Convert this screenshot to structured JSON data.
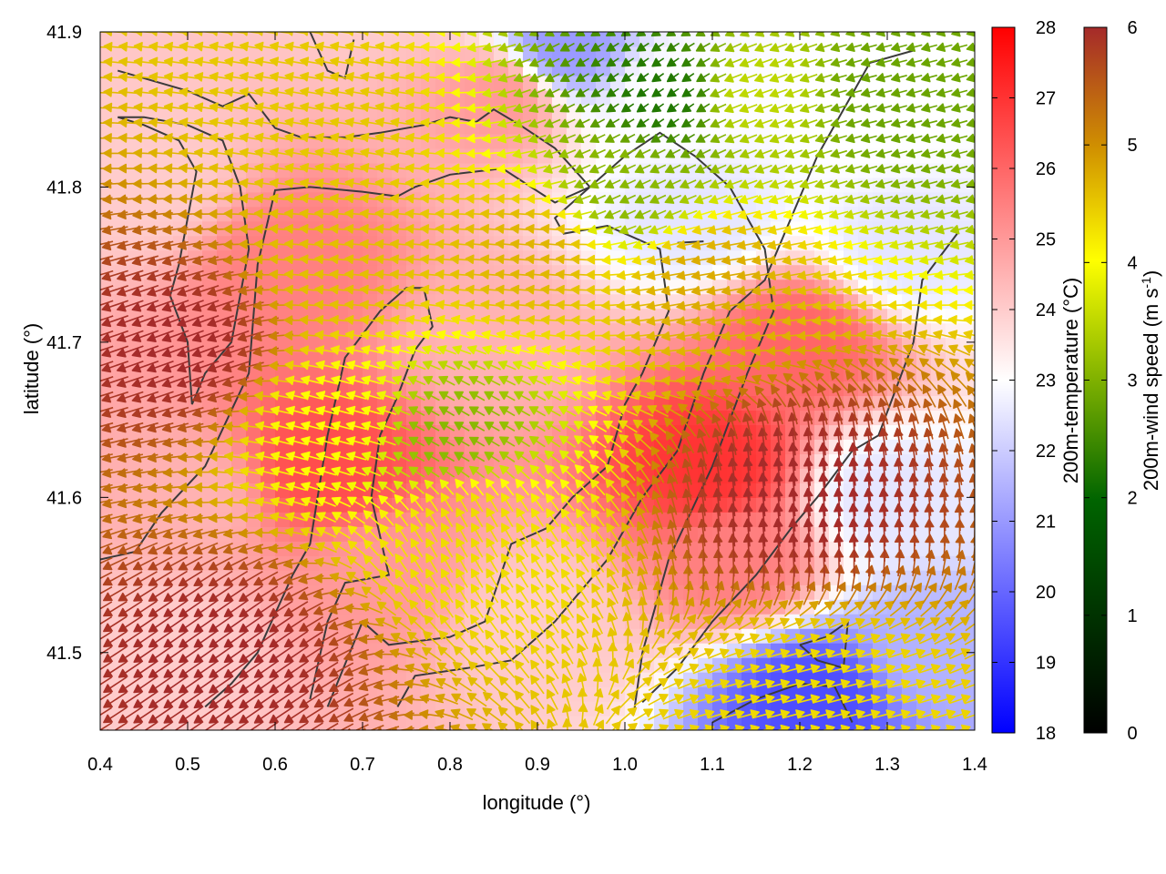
{
  "chart_data": {
    "type": "heatmap",
    "subtype": "temperature field with wind-vector overlay and contour lines",
    "xlabel": "longitude (°)",
    "ylabel": "latitude (°)",
    "xlim": [
      0.4,
      1.4
    ],
    "ylim": [
      41.45,
      41.9
    ],
    "x_ticks": [
      "0.4",
      "0.5",
      "0.6",
      "0.7",
      "0.8",
      "0.9",
      "1.0",
      "1.1",
      "1.2",
      "1.3",
      "1.4"
    ],
    "y_ticks": [
      "41.5",
      "41.6",
      "41.7",
      "41.8",
      "41.9"
    ],
    "grid": false,
    "temperature_colorbar": {
      "label": "200m-temperature (°C)",
      "range": [
        18,
        28
      ],
      "ticks": [
        "18",
        "19",
        "20",
        "21",
        "22",
        "23",
        "24",
        "25",
        "26",
        "27",
        "28"
      ],
      "colors": [
        "#0000ff",
        "#ffffff",
        "#ff0000"
      ]
    },
    "wind_colorbar": {
      "label_main": "200m-wind speed (m s",
      "label_sup": "-1",
      "label_end": ")",
      "range": [
        0,
        6
      ],
      "ticks": [
        "0",
        "1",
        "2",
        "3",
        "4",
        "5",
        "6"
      ],
      "colors": [
        "#000000",
        "#006400",
        "#7fb100",
        "#ffff00",
        "#d09000",
        "#a52a2a"
      ]
    },
    "temperature_regions": [
      {
        "lon": 0.45,
        "lat": 41.8,
        "temp": 24.0
      },
      {
        "lon": 0.5,
        "lat": 41.6,
        "temp": 24.5
      },
      {
        "lon": 0.48,
        "lat": 41.5,
        "temp": 24.0
      },
      {
        "lon": 0.62,
        "lat": 41.75,
        "temp": 25.5
      },
      {
        "lon": 0.66,
        "lat": 41.62,
        "temp": 26.5
      },
      {
        "lon": 0.72,
        "lat": 41.55,
        "temp": 25.0
      },
      {
        "lon": 0.85,
        "lat": 41.7,
        "temp": 24.5
      },
      {
        "lon": 0.86,
        "lat": 41.86,
        "temp": 25.0
      },
      {
        "lon": 0.9,
        "lat": 41.52,
        "temp": 24.0
      },
      {
        "lon": 0.93,
        "lat": 41.89,
        "temp": 21.0
      },
      {
        "lon": 1.05,
        "lat": 41.86,
        "temp": 23.0
      },
      {
        "lon": 1.08,
        "lat": 41.78,
        "temp": 22.5
      },
      {
        "lon": 1.1,
        "lat": 41.62,
        "temp": 27.0
      },
      {
        "lon": 1.13,
        "lat": 41.56,
        "temp": 25.5
      },
      {
        "lon": 1.2,
        "lat": 41.7,
        "temp": 26.0
      },
      {
        "lon": 1.28,
        "lat": 41.85,
        "temp": 23.0
      },
      {
        "lon": 1.32,
        "lat": 41.76,
        "temp": 22.5
      },
      {
        "lon": 1.3,
        "lat": 41.6,
        "temp": 22.5
      },
      {
        "lon": 1.22,
        "lat": 41.47,
        "temp": 19.5
      },
      {
        "lon": 1.35,
        "lat": 41.5,
        "temp": 21.5
      }
    ],
    "wind_regions": [
      {
        "lon": 0.5,
        "lat": 41.7,
        "speed": 6.0,
        "dir_deg": 200
      },
      {
        "lon": 0.66,
        "lat": 41.84,
        "speed": 4.2,
        "dir_deg": 170
      },
      {
        "lon": 0.68,
        "lat": 41.75,
        "speed": 4.3,
        "dir_deg": 175
      },
      {
        "lon": 0.68,
        "lat": 41.65,
        "speed": 3.6,
        "dir_deg": 165
      },
      {
        "lon": 0.8,
        "lat": 41.64,
        "speed": 2.5,
        "dir_deg": 150
      },
      {
        "lon": 0.82,
        "lat": 41.58,
        "speed": 4.0,
        "dir_deg": 120
      },
      {
        "lon": 0.9,
        "lat": 41.76,
        "speed": 4.4,
        "dir_deg": 175
      },
      {
        "lon": 1.0,
        "lat": 41.8,
        "speed": 2.5,
        "dir_deg": 205
      },
      {
        "lon": 1.05,
        "lat": 41.86,
        "speed": 1.5,
        "dir_deg": 215
      },
      {
        "lon": 1.15,
        "lat": 41.86,
        "speed": 3.0,
        "dir_deg": 200
      },
      {
        "lon": 1.1,
        "lat": 41.74,
        "speed": 4.5,
        "dir_deg": 190
      },
      {
        "lon": 1.3,
        "lat": 41.86,
        "speed": 2.2,
        "dir_deg": 195
      },
      {
        "lon": 1.2,
        "lat": 41.6,
        "speed": 6.0,
        "dir_deg": 95
      },
      {
        "lon": 1.22,
        "lat": 41.47,
        "speed": 4.0,
        "dir_deg": 15
      },
      {
        "lon": 0.55,
        "lat": 41.5,
        "speed": 6.0,
        "dir_deg": 215
      }
    ],
    "contours": [
      [
        [
          0.42,
          41.875
        ],
        [
          0.5,
          41.862
        ],
        [
          0.54,
          41.852
        ],
        [
          0.57,
          41.86
        ],
        [
          0.6,
          41.838
        ],
        [
          0.63,
          41.832
        ],
        [
          0.68,
          41.832
        ],
        [
          0.72,
          41.835
        ],
        [
          0.77,
          41.84
        ],
        [
          0.8,
          41.845
        ],
        [
          0.83,
          41.842
        ],
        [
          0.85,
          41.85
        ],
        [
          0.88,
          41.84
        ],
        [
          0.92,
          41.825
        ],
        [
          0.96,
          41.8
        ],
        [
          0.92,
          41.79
        ],
        [
          0.86,
          41.812
        ],
        [
          0.8,
          41.808
        ],
        [
          0.76,
          41.8
        ],
        [
          0.74,
          41.794
        ],
        [
          0.7,
          41.797
        ],
        [
          0.64,
          41.8
        ],
        [
          0.6,
          41.798
        ],
        [
          0.58,
          41.75
        ],
        [
          0.57,
          41.68
        ],
        [
          0.52,
          41.62
        ],
        [
          0.47,
          41.59
        ],
        [
          0.44,
          41.565
        ],
        [
          0.4,
          41.56
        ]
      ],
      [
        [
          0.42,
          41.845
        ],
        [
          0.45,
          41.84
        ],
        [
          0.49,
          41.83
        ],
        [
          0.51,
          41.81
        ],
        [
          0.5,
          41.78
        ],
        [
          0.49,
          41.75
        ],
        [
          0.48,
          41.73
        ],
        [
          0.5,
          41.7
        ],
        [
          0.505,
          41.66
        ],
        [
          0.52,
          41.68
        ],
        [
          0.55,
          41.7
        ],
        [
          0.57,
          41.76
        ],
        [
          0.56,
          41.8
        ],
        [
          0.54,
          41.83
        ],
        [
          0.5,
          41.84
        ],
        [
          0.45,
          41.845
        ],
        [
          0.42,
          41.845
        ]
      ],
      [
        [
          0.52,
          41.465
        ],
        [
          0.55,
          41.48
        ],
        [
          0.58,
          41.5
        ],
        [
          0.6,
          41.525
        ],
        [
          0.62,
          41.55
        ],
        [
          0.64,
          41.57
        ],
        [
          0.66,
          41.64
        ],
        [
          0.68,
          41.69
        ],
        [
          0.72,
          41.72
        ],
        [
          0.75,
          41.735
        ],
        [
          0.77,
          41.735
        ],
        [
          0.78,
          41.71
        ],
        [
          0.76,
          41.695
        ],
        [
          0.74,
          41.665
        ],
        [
          0.72,
          41.64
        ],
        [
          0.71,
          41.6
        ],
        [
          0.73,
          41.55
        ],
        [
          0.68,
          41.545
        ],
        [
          0.66,
          41.52
        ],
        [
          0.64,
          41.47
        ]
      ],
      [
        [
          0.66,
          41.465
        ],
        [
          0.7,
          41.52
        ],
        [
          0.73,
          41.505
        ],
        [
          0.8,
          41.51
        ],
        [
          0.84,
          41.52
        ],
        [
          0.87,
          41.57
        ],
        [
          0.91,
          41.58
        ],
        [
          0.94,
          41.6
        ],
        [
          0.98,
          41.62
        ],
        [
          1.0,
          41.66
        ],
        [
          1.02,
          41.68
        ],
        [
          1.05,
          41.72
        ],
        [
          1.04,
          41.76
        ],
        [
          0.98,
          41.775
        ],
        [
          0.93,
          41.77
        ],
        [
          0.92,
          41.78
        ],
        [
          0.96,
          41.8
        ],
        [
          1.0,
          41.82
        ],
        [
          1.04,
          41.835
        ],
        [
          1.08,
          41.82
        ],
        [
          1.12,
          41.8
        ],
        [
          1.16,
          41.76
        ],
        [
          1.17,
          41.72
        ],
        [
          1.14,
          41.68
        ],
        [
          1.1,
          41.62
        ],
        [
          1.05,
          41.56
        ],
        [
          1.02,
          41.5
        ],
        [
          1.01,
          41.46
        ]
      ],
      [
        [
          0.74,
          41.465
        ],
        [
          0.76,
          41.485
        ],
        [
          0.82,
          41.49
        ],
        [
          0.87,
          41.495
        ],
        [
          0.92,
          41.52
        ],
        [
          0.98,
          41.56
        ],
        [
          1.02,
          41.6
        ],
        [
          1.06,
          41.63
        ],
        [
          1.09,
          41.68
        ],
        [
          1.12,
          41.72
        ],
        [
          1.16,
          41.74
        ],
        [
          1.19,
          41.78
        ],
        [
          1.22,
          41.82
        ],
        [
          1.24,
          41.84
        ],
        [
          1.26,
          41.86
        ],
        [
          1.28,
          41.88
        ],
        [
          1.33,
          41.888
        ]
      ],
      [
        [
          1.02,
          41.468
        ],
        [
          1.06,
          41.49
        ],
        [
          1.1,
          41.52
        ],
        [
          1.15,
          41.55
        ],
        [
          1.19,
          41.58
        ],
        [
          1.22,
          41.6
        ],
        [
          1.26,
          41.63
        ],
        [
          1.29,
          41.64
        ],
        [
          1.31,
          41.67
        ],
        [
          1.33,
          41.7
        ],
        [
          1.34,
          41.74
        ],
        [
          1.38,
          41.77
        ]
      ],
      [
        [
          1.1,
          41.455
        ],
        [
          1.15,
          41.47
        ],
        [
          1.2,
          41.48
        ],
        [
          1.24,
          41.478
        ],
        [
          1.26,
          41.455
        ]
      ],
      [
        [
          1.2,
          41.505
        ],
        [
          1.23,
          41.51
        ],
        [
          1.255,
          41.52
        ],
        [
          1.25,
          41.49
        ],
        [
          1.22,
          41.495
        ],
        [
          1.2,
          41.505
        ]
      ],
      [
        [
          0.64,
          41.9
        ],
        [
          0.66,
          41.875
        ],
        [
          0.68,
          41.87
        ],
        [
          0.69,
          41.895
        ]
      ],
      [
        [
          1.06,
          41.764
        ],
        [
          1.09,
          41.765
        ]
      ]
    ]
  }
}
